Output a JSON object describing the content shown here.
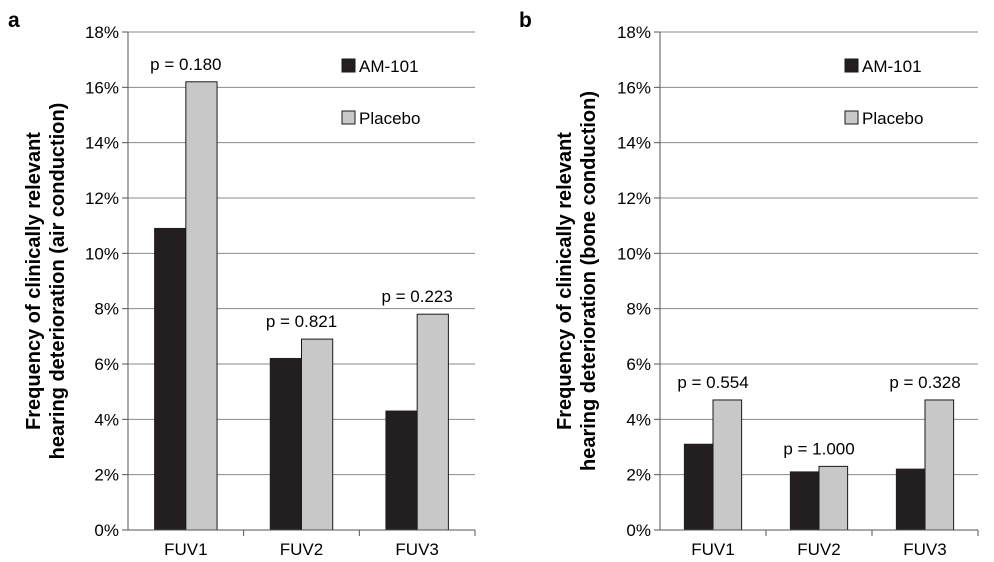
{
  "chart_data": [
    {
      "panel": "a",
      "type": "bar",
      "ylabel": [
        "Frequency of clinically relevant",
        "hearing deterioration (air conduction)"
      ],
      "categories": [
        "FUV1",
        "FUV2",
        "FUV3"
      ],
      "ylim": [
        0,
        18
      ],
      "yticks": [
        "0%",
        "2%",
        "4%",
        "6%",
        "8%",
        "10%",
        "12%",
        "14%",
        "16%",
        "18%"
      ],
      "grid": true,
      "legend_position": "top-right",
      "series": [
        {
          "name": "AM-101",
          "color": "#231f20",
          "values": [
            10.9,
            6.2,
            4.3
          ]
        },
        {
          "name": "Placebo",
          "color": "#c8c8c8",
          "values": [
            16.2,
            6.9,
            7.8
          ]
        }
      ],
      "annotations": [
        "p = 0.180",
        "p = 0.821",
        "p = 0.223"
      ]
    },
    {
      "panel": "b",
      "type": "bar",
      "ylabel": [
        "Frequency of clinically relevant",
        "hearing deterioration (bone conduction)"
      ],
      "categories": [
        "FUV1",
        "FUV2",
        "FUV3"
      ],
      "ylim": [
        0,
        18
      ],
      "yticks": [
        "0%",
        "2%",
        "4%",
        "6%",
        "8%",
        "10%",
        "12%",
        "14%",
        "16%",
        "18%"
      ],
      "grid": true,
      "legend_position": "top-right",
      "series": [
        {
          "name": "AM-101",
          "color": "#231f20",
          "values": [
            3.1,
            2.1,
            2.2
          ]
        },
        {
          "name": "Placebo",
          "color": "#c8c8c8",
          "values": [
            4.7,
            2.3,
            4.7
          ]
        }
      ],
      "annotations": [
        "p = 0.554",
        "p = 1.000",
        "p = 0.328"
      ]
    }
  ]
}
